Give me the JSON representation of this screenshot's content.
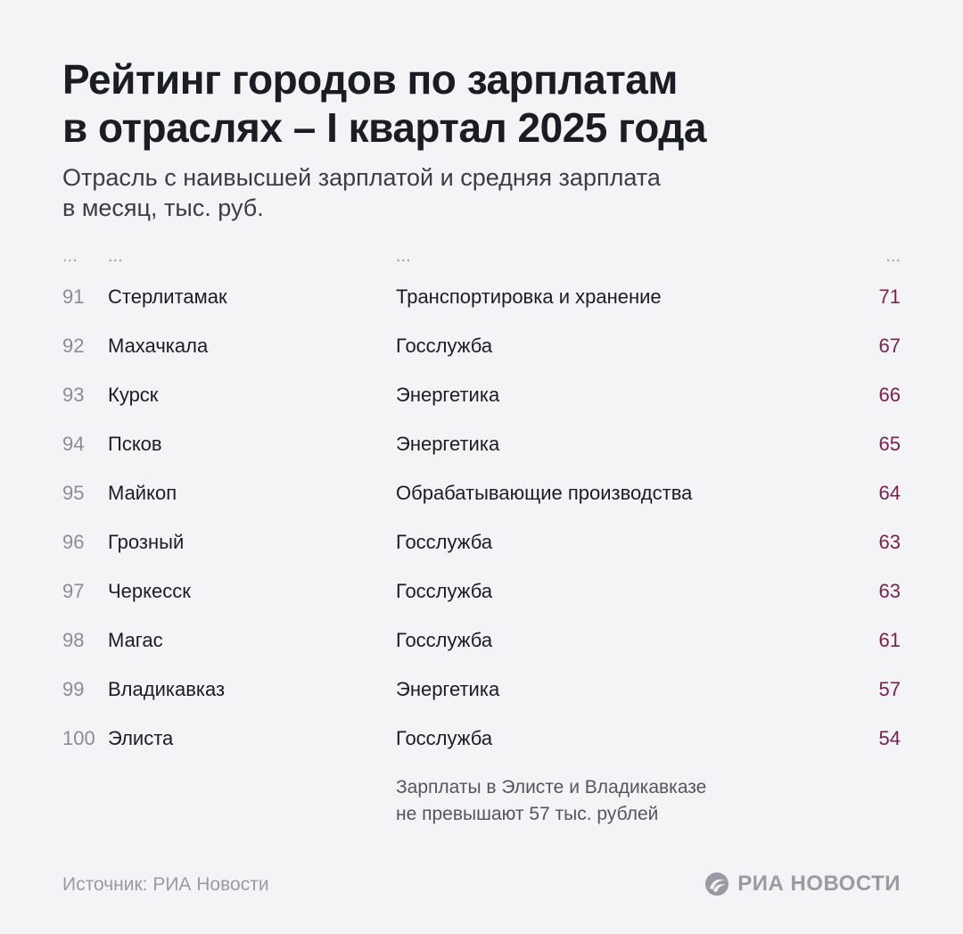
{
  "header": {
    "title_line1": "Рейтинг городов по зарплатам",
    "title_line2": "в отраслях – I квартал 2025 года",
    "subtitle_line1": "Отрасль с наивысшей зарплатой и средняя зарплата",
    "subtitle_line2": "в месяц, тыс. руб."
  },
  "ellipsis_row": {
    "rank": "...",
    "city": "...",
    "industry": "...",
    "value": "..."
  },
  "chart_data": {
    "type": "table",
    "columns": [
      "rank",
      "city",
      "industry",
      "value"
    ],
    "rows": [
      {
        "rank": "91",
        "city": "Стерлитамак",
        "industry": "Транспортировка и хранение",
        "value": "71"
      },
      {
        "rank": "92",
        "city": "Махачкала",
        "industry": "Госслужба",
        "value": "67"
      },
      {
        "rank": "93",
        "city": "Курск",
        "industry": "Энергетика",
        "value": "66"
      },
      {
        "rank": "94",
        "city": "Псков",
        "industry": "Энергетика",
        "value": "65"
      },
      {
        "rank": "95",
        "city": "Майкоп",
        "industry": "Обрабатывающие производства",
        "value": "64"
      },
      {
        "rank": "96",
        "city": "Грозный",
        "industry": "Госслужба",
        "value": "63"
      },
      {
        "rank": "97",
        "city": "Черкесск",
        "industry": "Госслужба",
        "value": "63"
      },
      {
        "rank": "98",
        "city": "Магас",
        "industry": "Госслужба",
        "value": "61"
      },
      {
        "rank": "99",
        "city": "Владикавказ",
        "industry": "Энергетика",
        "value": "57"
      },
      {
        "rank": "100",
        "city": "Элиста",
        "industry": "Госслужба",
        "value": "54"
      }
    ]
  },
  "note": {
    "line1": "Зарплаты в Элисте и Владикавказе",
    "line2": "не превышают 57 тыс. рублей"
  },
  "footer": {
    "source": "Источник: РИА Новости",
    "logo_text": "РИА НОВОСТИ",
    "logo_icon": "ria-logo-icon"
  },
  "colors": {
    "background": "#f4f4f6",
    "accent_value": "#7a2150",
    "muted": "#9a9aa4"
  }
}
